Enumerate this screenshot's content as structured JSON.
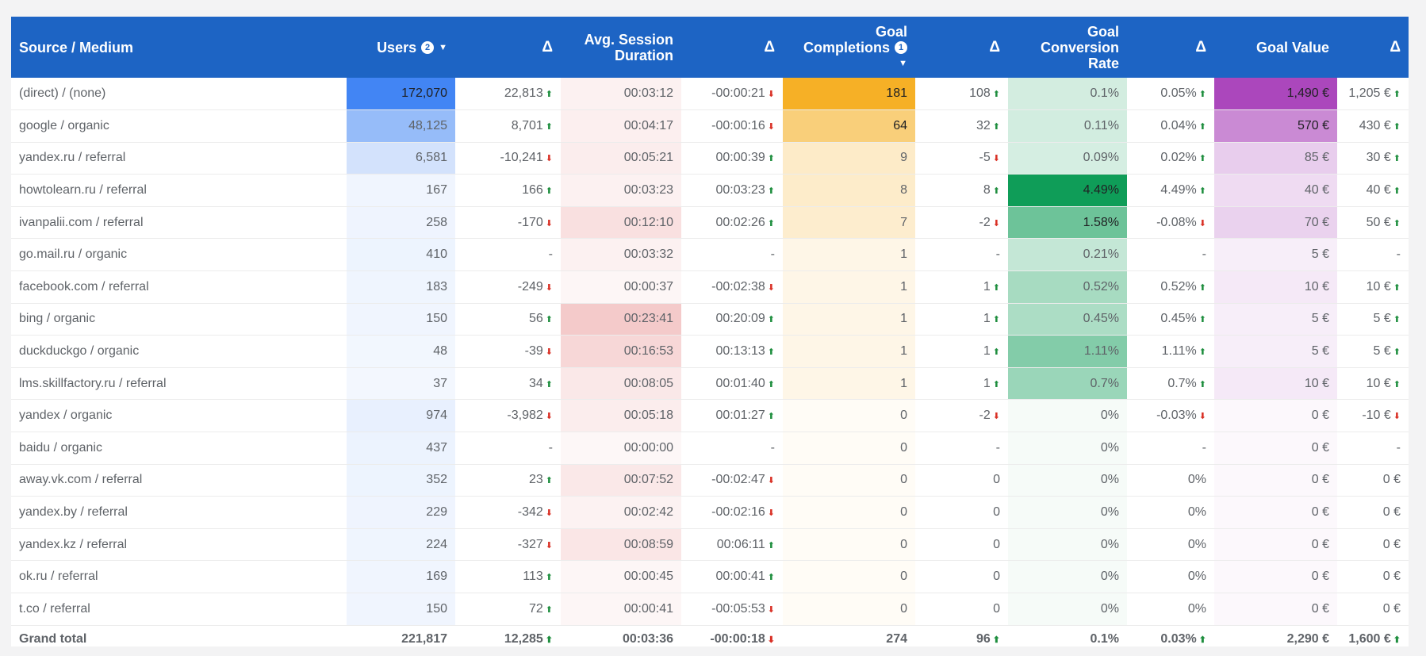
{
  "header": {
    "source": "Source / Medium",
    "users": "Users",
    "users_badge": "2",
    "delta": "Δ",
    "avg_session_line1": "Avg. Session",
    "avg_session_line2": "Duration",
    "goal_comp_line1": "Goal",
    "goal_comp_line2": "Completions",
    "goal_comp_badge": "1",
    "conv_line1": "Goal",
    "conv_line2": "Conversion",
    "conv_line3": "Rate",
    "goal_value": "Goal Value"
  },
  "heat_colors": {
    "users": "#4285f4",
    "duration": "#e06666",
    "goals": "#f6b026",
    "conversion": "#0f9d58",
    "value": "#ab47bc"
  },
  "rows": [
    {
      "source": "(direct) / (none)",
      "users": "172,070",
      "users_n": 172070,
      "users_d": "22,813",
      "users_dir": "up",
      "dur": "00:03:12",
      "dur_s": 192,
      "dur_d": "-00:00:21",
      "dur_dir": "down",
      "goals": "181",
      "goals_n": 181,
      "goals_d": "108",
      "goals_dir": "up",
      "conv": "0.1%",
      "conv_n": 0.1,
      "conv_d": "0.05%",
      "conv_dir": "up",
      "value": "1,490 €",
      "value_n": 1490,
      "value_d": "1,205 €",
      "value_dir": "up"
    },
    {
      "source": "google / organic",
      "users": "48,125",
      "users_n": 48125,
      "users_d": "8,701",
      "users_dir": "up",
      "dur": "00:04:17",
      "dur_s": 257,
      "dur_d": "-00:00:16",
      "dur_dir": "down",
      "goals": "64",
      "goals_n": 64,
      "goals_d": "32",
      "goals_dir": "up",
      "conv": "0.11%",
      "conv_n": 0.11,
      "conv_d": "0.04%",
      "conv_dir": "up",
      "value": "570 €",
      "value_n": 570,
      "value_d": "430 €",
      "value_dir": "up"
    },
    {
      "source": "yandex.ru / referral",
      "users": "6,581",
      "users_n": 6581,
      "users_d": "-10,241",
      "users_dir": "down",
      "dur": "00:05:21",
      "dur_s": 321,
      "dur_d": "00:00:39",
      "dur_dir": "up",
      "goals": "9",
      "goals_n": 9,
      "goals_d": "-5",
      "goals_dir": "down",
      "conv": "0.09%",
      "conv_n": 0.09,
      "conv_d": "0.02%",
      "conv_dir": "up",
      "value": "85 €",
      "value_n": 85,
      "value_d": "30 €",
      "value_dir": "up"
    },
    {
      "source": "howtolearn.ru / referral",
      "users": "167",
      "users_n": 167,
      "users_d": "166",
      "users_dir": "up",
      "dur": "00:03:23",
      "dur_s": 203,
      "dur_d": "00:03:23",
      "dur_dir": "up",
      "goals": "8",
      "goals_n": 8,
      "goals_d": "8",
      "goals_dir": "up",
      "conv": "4.49%",
      "conv_n": 4.49,
      "conv_d": "4.49%",
      "conv_dir": "up",
      "value": "40 €",
      "value_n": 40,
      "value_d": "40 €",
      "value_dir": "up"
    },
    {
      "source": "ivanpalii.com / referral",
      "users": "258",
      "users_n": 258,
      "users_d": "-170",
      "users_dir": "down",
      "dur": "00:12:10",
      "dur_s": 730,
      "dur_d": "00:02:26",
      "dur_dir": "up",
      "goals": "7",
      "goals_n": 7,
      "goals_d": "-2",
      "goals_dir": "down",
      "conv": "1.58%",
      "conv_n": 1.58,
      "conv_d": "-0.08%",
      "conv_dir": "down",
      "value": "70 €",
      "value_n": 70,
      "value_d": "50 €",
      "value_dir": "up"
    },
    {
      "source": "go.mail.ru / organic",
      "users": "410",
      "users_n": 410,
      "users_d": "-",
      "users_dir": "",
      "dur": "00:03:32",
      "dur_s": 212,
      "dur_d": "-",
      "dur_dir": "",
      "goals": "1",
      "goals_n": 1,
      "goals_d": "-",
      "goals_dir": "",
      "conv": "0.21%",
      "conv_n": 0.21,
      "conv_d": "-",
      "conv_dir": "",
      "value": "5 €",
      "value_n": 5,
      "value_d": "-",
      "value_dir": ""
    },
    {
      "source": "facebook.com / referral",
      "users": "183",
      "users_n": 183,
      "users_d": "-249",
      "users_dir": "down",
      "dur": "00:00:37",
      "dur_s": 37,
      "dur_d": "-00:02:38",
      "dur_dir": "down",
      "goals": "1",
      "goals_n": 1,
      "goals_d": "1",
      "goals_dir": "up",
      "conv": "0.52%",
      "conv_n": 0.52,
      "conv_d": "0.52%",
      "conv_dir": "up",
      "value": "10 €",
      "value_n": 10,
      "value_d": "10 €",
      "value_dir": "up"
    },
    {
      "source": "bing / organic",
      "users": "150",
      "users_n": 150,
      "users_d": "56",
      "users_dir": "up",
      "dur": "00:23:41",
      "dur_s": 1421,
      "dur_d": "00:20:09",
      "dur_dir": "up",
      "goals": "1",
      "goals_n": 1,
      "goals_d": "1",
      "goals_dir": "up",
      "conv": "0.45%",
      "conv_n": 0.45,
      "conv_d": "0.45%",
      "conv_dir": "up",
      "value": "5 €",
      "value_n": 5,
      "value_d": "5 €",
      "value_dir": "up"
    },
    {
      "source": "duckduckgo / organic",
      "users": "48",
      "users_n": 48,
      "users_d": "-39",
      "users_dir": "down",
      "dur": "00:16:53",
      "dur_s": 1013,
      "dur_d": "00:13:13",
      "dur_dir": "up",
      "goals": "1",
      "goals_n": 1,
      "goals_d": "1",
      "goals_dir": "up",
      "conv": "1.11%",
      "conv_n": 1.11,
      "conv_d": "1.11%",
      "conv_dir": "up",
      "value": "5 €",
      "value_n": 5,
      "value_d": "5 €",
      "value_dir": "up"
    },
    {
      "source": "lms.skillfactory.ru / referral",
      "users": "37",
      "users_n": 37,
      "users_d": "34",
      "users_dir": "up",
      "dur": "00:08:05",
      "dur_s": 485,
      "dur_d": "00:01:40",
      "dur_dir": "up",
      "goals": "1",
      "goals_n": 1,
      "goals_d": "1",
      "goals_dir": "up",
      "conv": "0.7%",
      "conv_n": 0.7,
      "conv_d": "0.7%",
      "conv_dir": "up",
      "value": "10 €",
      "value_n": 10,
      "value_d": "10 €",
      "value_dir": "up"
    },
    {
      "source": "yandex / organic",
      "users": "974",
      "users_n": 974,
      "users_d": "-3,982",
      "users_dir": "down",
      "dur": "00:05:18",
      "dur_s": 318,
      "dur_d": "00:01:27",
      "dur_dir": "up",
      "goals": "0",
      "goals_n": 0,
      "goals_d": "-2",
      "goals_dir": "down",
      "conv": "0%",
      "conv_n": 0,
      "conv_d": "-0.03%",
      "conv_dir": "down",
      "value": "0 €",
      "value_n": 0,
      "value_d": "-10 €",
      "value_dir": "down"
    },
    {
      "source": "baidu / organic",
      "users": "437",
      "users_n": 437,
      "users_d": "-",
      "users_dir": "",
      "dur": "00:00:00",
      "dur_s": 0,
      "dur_d": "-",
      "dur_dir": "",
      "goals": "0",
      "goals_n": 0,
      "goals_d": "-",
      "goals_dir": "",
      "conv": "0%",
      "conv_n": 0,
      "conv_d": "-",
      "conv_dir": "",
      "value": "0 €",
      "value_n": 0,
      "value_d": "-",
      "value_dir": ""
    },
    {
      "source": "away.vk.com / referral",
      "users": "352",
      "users_n": 352,
      "users_d": "23",
      "users_dir": "up",
      "dur": "00:07:52",
      "dur_s": 472,
      "dur_d": "-00:02:47",
      "dur_dir": "down",
      "goals": "0",
      "goals_n": 0,
      "goals_d": "0",
      "goals_dir": "",
      "conv": "0%",
      "conv_n": 0,
      "conv_d": "0%",
      "conv_dir": "",
      "value": "0 €",
      "value_n": 0,
      "value_d": "0 €",
      "value_dir": ""
    },
    {
      "source": "yandex.by / referral",
      "users": "229",
      "users_n": 229,
      "users_d": "-342",
      "users_dir": "down",
      "dur": "00:02:42",
      "dur_s": 162,
      "dur_d": "-00:02:16",
      "dur_dir": "down",
      "goals": "0",
      "goals_n": 0,
      "goals_d": "0",
      "goals_dir": "",
      "conv": "0%",
      "conv_n": 0,
      "conv_d": "0%",
      "conv_dir": "",
      "value": "0 €",
      "value_n": 0,
      "value_d": "0 €",
      "value_dir": ""
    },
    {
      "source": "yandex.kz / referral",
      "users": "224",
      "users_n": 224,
      "users_d": "-327",
      "users_dir": "down",
      "dur": "00:08:59",
      "dur_s": 539,
      "dur_d": "00:06:11",
      "dur_dir": "up",
      "goals": "0",
      "goals_n": 0,
      "goals_d": "0",
      "goals_dir": "",
      "conv": "0%",
      "conv_n": 0,
      "conv_d": "0%",
      "conv_dir": "",
      "value": "0 €",
      "value_n": 0,
      "value_d": "0 €",
      "value_dir": ""
    },
    {
      "source": "ok.ru / referral",
      "users": "169",
      "users_n": 169,
      "users_d": "113",
      "users_dir": "up",
      "dur": "00:00:45",
      "dur_s": 45,
      "dur_d": "00:00:41",
      "dur_dir": "up",
      "goals": "0",
      "goals_n": 0,
      "goals_d": "0",
      "goals_dir": "",
      "conv": "0%",
      "conv_n": 0,
      "conv_d": "0%",
      "conv_dir": "",
      "value": "0 €",
      "value_n": 0,
      "value_d": "0 €",
      "value_dir": ""
    },
    {
      "source": "t.co / referral",
      "users": "150",
      "users_n": 150,
      "users_d": "72",
      "users_dir": "up",
      "dur": "00:00:41",
      "dur_s": 41,
      "dur_d": "-00:05:53",
      "dur_dir": "down",
      "goals": "0",
      "goals_n": 0,
      "goals_d": "0",
      "goals_dir": "",
      "conv": "0%",
      "conv_n": 0,
      "conv_d": "0%",
      "conv_dir": "",
      "value": "0 €",
      "value_n": 0,
      "value_d": "0 €",
      "value_dir": ""
    }
  ],
  "total": {
    "label": "Grand total",
    "users": "221,817",
    "users_d": "12,285",
    "users_dir": "up",
    "dur": "00:03:36",
    "dur_d": "-00:00:18",
    "dur_dir": "down",
    "goals": "274",
    "goals_d": "96",
    "goals_dir": "up",
    "conv": "0.1%",
    "conv_d": "0.03%",
    "conv_dir": "up",
    "value": "2,290 €",
    "value_d": "1,600 €",
    "value_dir": "up"
  }
}
